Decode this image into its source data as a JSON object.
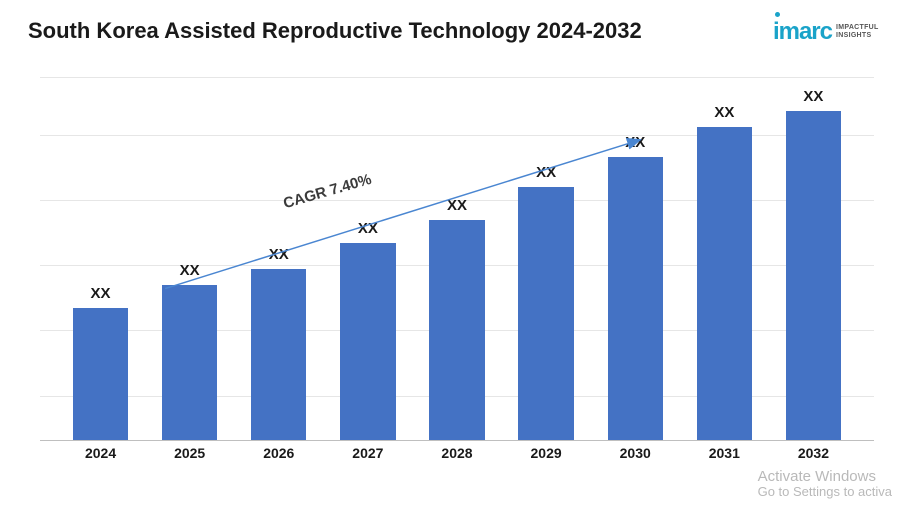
{
  "title": {
    "text": "South Korea Assisted Reproductive Technology 2024-2032",
    "fontsize": 22,
    "color": "#1a1a1a"
  },
  "logo": {
    "mark": "imarc",
    "mark_color": "#1aa3c9",
    "mark_fontsize": 24,
    "tagline": "IMPACTFUL INSIGHTS"
  },
  "chart": {
    "type": "bar",
    "categories": [
      "2024",
      "2025",
      "2026",
      "2027",
      "2028",
      "2029",
      "2030",
      "2031",
      "2032"
    ],
    "values": [
      40,
      47,
      52,
      60,
      67,
      77,
      86,
      95,
      100
    ],
    "bar_labels": [
      "XX",
      "XX",
      "XX",
      "XX",
      "XX",
      "XX",
      "XX",
      "XX",
      "XX"
    ],
    "bar_color": "#4472c4",
    "bar_width_pct": 62,
    "ylim": [
      0,
      110
    ],
    "grid_positions_pct": [
      12,
      30,
      48,
      66,
      84,
      100
    ],
    "grid_color": "#e6e6e6",
    "axis_color": "#bfbfbf",
    "label_fontsize": 15,
    "xtick_fontsize": 14,
    "background_color": "#ffffff",
    "cagr": {
      "text": "CAGR 7.40%",
      "fontsize": 15,
      "arrow_color": "#4a86d1",
      "x1_pct": 15,
      "y1_pct": 58,
      "x2_pct": 72,
      "y2_pct": 17,
      "label_left_pct": 29,
      "label_top_pct": 29,
      "label_rotate_deg": -16
    }
  },
  "watermark": {
    "line1": "Activate Windows",
    "line2": "Go to Settings to activa"
  }
}
